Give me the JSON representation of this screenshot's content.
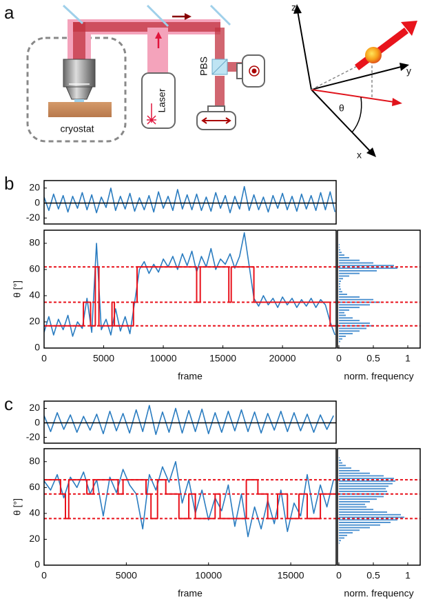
{
  "panel_labels": [
    "a",
    "b",
    "c"
  ],
  "diagram": {
    "setup_labels": {
      "cryostat": "cryostat",
      "laser": "Laser",
      "pbs": "PBS"
    },
    "axis_labels": {
      "z": "z",
      "y": "y",
      "x": "x",
      "theta": "θ"
    }
  },
  "chart_data": [
    {
      "type": "line",
      "xlim": [
        0,
        24500
      ],
      "ylim": [
        -28,
        30
      ],
      "yticks": [
        -20,
        0,
        20
      ],
      "baseline": 0,
      "baseline_color": "#000000",
      "series": [
        {
          "color": "#2a7cc0",
          "x": [
            0,
            400,
            800,
            1200,
            1600,
            2000,
            2400,
            2800,
            3200,
            3600,
            4000,
            4400,
            4800,
            5200,
            5600,
            6000,
            6400,
            6800,
            7200,
            7600,
            8000,
            8400,
            8800,
            9200,
            9600,
            10000,
            10400,
            10800,
            11200,
            11600,
            12000,
            12400,
            12800,
            13200,
            13600,
            14000,
            14400,
            14800,
            15200,
            15600,
            16000,
            16400,
            16800,
            17200,
            17600,
            18000,
            18400,
            18800,
            19200,
            19600,
            20000,
            20400,
            20800,
            21200,
            21600,
            22000,
            22400,
            22800,
            23200,
            23600,
            24000,
            24400
          ],
          "values": [
            8,
            -10,
            12,
            -8,
            10,
            -12,
            9,
            -7,
            14,
            -9,
            11,
            -13,
            8,
            -6,
            20,
            -10,
            9,
            -8,
            13,
            -11,
            7,
            -9,
            10,
            -12,
            15,
            -7,
            9,
            -10,
            18,
            -8,
            11,
            -9,
            12,
            -10,
            8,
            -11,
            14,
            -7,
            10,
            -13,
            9,
            -8,
            22,
            -10,
            11,
            -9,
            8,
            -12,
            10,
            -7,
            13,
            -9,
            9,
            -11,
            12,
            -8,
            10,
            -10,
            14,
            -9,
            15,
            -12
          ]
        }
      ]
    },
    {
      "type": "line",
      "xlim": [
        0,
        24500
      ],
      "ylim": [
        0,
        90
      ],
      "xticks": [
        0,
        5000,
        10000,
        15000,
        20000
      ],
      "yticks": [
        0,
        20,
        40,
        60,
        80
      ],
      "x_label": "frame",
      "y_label": "θ [°]",
      "levels": [
        17,
        35,
        62
      ],
      "level_color": "#e8101a",
      "series": [
        {
          "color": "#2a7cc0",
          "x": [
            0,
            400,
            800,
            1200,
            1600,
            2000,
            2400,
            2800,
            3200,
            3600,
            4000,
            4400,
            4800,
            5200,
            5600,
            6000,
            6400,
            6800,
            7200,
            7600,
            8000,
            8400,
            8800,
            9200,
            9600,
            10000,
            10400,
            10800,
            11200,
            11600,
            12000,
            12400,
            12800,
            13200,
            13600,
            14000,
            14400,
            14800,
            15200,
            15600,
            16000,
            16400,
            16800,
            17200,
            17600,
            18000,
            18400,
            18800,
            19200,
            19600,
            20000,
            20400,
            20800,
            21200,
            21600,
            22000,
            22400,
            22800,
            23200,
            23600,
            24000,
            24400
          ],
          "values": [
            12,
            24,
            10,
            22,
            14,
            25,
            9,
            20,
            15,
            38,
            12,
            80,
            14,
            22,
            10,
            30,
            13,
            24,
            11,
            35,
            60,
            66,
            57,
            64,
            58,
            68,
            62,
            70,
            60,
            72,
            63,
            74,
            58,
            70,
            62,
            76,
            60,
            68,
            64,
            72,
            61,
            70,
            88,
            63,
            38,
            32,
            40,
            33,
            38,
            31,
            39,
            33,
            38,
            31,
            37,
            32,
            38,
            31,
            37,
            33,
            20,
            10
          ]
        },
        {
          "color": "#e8101a",
          "x": [
            0,
            3300,
            3300,
            3900,
            3900,
            4300,
            4300,
            4600,
            4600,
            5700,
            5700,
            5900,
            5900,
            7500,
            7500,
            7800,
            7800,
            12800,
            12800,
            13100,
            13100,
            15500,
            15500,
            15700,
            15700,
            17600,
            17600,
            24000,
            24000,
            24400
          ],
          "values": [
            17,
            17,
            35,
            35,
            17,
            17,
            62,
            62,
            17,
            17,
            35,
            35,
            17,
            17,
            35,
            35,
            62,
            62,
            35,
            35,
            62,
            62,
            35,
            35,
            62,
            62,
            35,
            35,
            17,
            17
          ]
        }
      ]
    },
    {
      "type": "histogram",
      "orientation": "horizontal",
      "xlim": [
        -0.02,
        1.18
      ],
      "ylim": [
        0,
        90
      ],
      "xticks": [
        0,
        0.5,
        1
      ],
      "x_label": "norm. frequency",
      "color": "#4a90d0",
      "levels": [
        17,
        35,
        62
      ],
      "level_color": "#e8101a",
      "bins": [
        0,
        2,
        4,
        6,
        8,
        10,
        12,
        14,
        16,
        18,
        20,
        22,
        24,
        26,
        28,
        30,
        32,
        34,
        36,
        38,
        40,
        42,
        44,
        46,
        48,
        50,
        52,
        54,
        56,
        58,
        60,
        62,
        64,
        66,
        68,
        70,
        72,
        74,
        76,
        78,
        80,
        82,
        84,
        86,
        88,
        90
      ],
      "values": [
        0,
        0,
        0.02,
        0.05,
        0.1,
        0.2,
        0.3,
        0.4,
        0.5,
        0.45,
        0.3,
        0.2,
        0.1,
        0.08,
        0.15,
        0.3,
        0.45,
        0.6,
        0.5,
        0.3,
        0.12,
        0.05,
        0.03,
        0.02,
        0.02,
        0.03,
        0.06,
        0.15,
        0.3,
        0.55,
        0.85,
        0.8,
        0.5,
        0.3,
        0.15,
        0.08,
        0.04,
        0.02,
        0.01,
        0.01,
        0,
        0,
        0,
        0,
        0
      ]
    },
    {
      "type": "line",
      "xlim": [
        0,
        17760
      ],
      "ylim": [
        -28,
        30
      ],
      "yticks": [
        -20,
        0,
        20
      ],
      "baseline": 0,
      "baseline_color": "#000000",
      "series": [
        {
          "color": "#2a7cc0",
          "x": [
            0,
            400,
            800,
            1200,
            1600,
            2000,
            2400,
            2800,
            3200,
            3600,
            4000,
            4400,
            4800,
            5200,
            5600,
            6000,
            6400,
            6800,
            7200,
            7600,
            8000,
            8400,
            8800,
            9200,
            9600,
            10000,
            10400,
            10800,
            11200,
            11600,
            12000,
            12400,
            12800,
            13200,
            13600,
            14000,
            14400,
            14800,
            15200,
            15600,
            16000,
            16400,
            16800,
            17200,
            17600
          ],
          "values": [
            10,
            -12,
            14,
            -9,
            11,
            -13,
            9,
            -10,
            12,
            -15,
            16,
            -11,
            13,
            -14,
            18,
            -12,
            24,
            -16,
            15,
            -13,
            20,
            -14,
            17,
            -12,
            19,
            -15,
            14,
            -13,
            16,
            -11,
            18,
            -12,
            15,
            -14,
            13,
            -10,
            16,
            -12,
            14,
            -11,
            12,
            -13,
            11,
            -9,
            10
          ]
        }
      ]
    },
    {
      "type": "line",
      "xlim": [
        0,
        17760
      ],
      "ylim": [
        0,
        90
      ],
      "xticks": [
        0,
        5000,
        10000,
        15000
      ],
      "yticks": [
        0,
        20,
        40,
        60,
        80
      ],
      "x_label": "frame",
      "y_label": "θ [°]",
      "levels": [
        36,
        55,
        66
      ],
      "level_color": "#e8101a",
      "series": [
        {
          "color": "#2a7cc0",
          "x": [
            0,
            400,
            800,
            1200,
            1600,
            2000,
            2400,
            2800,
            3200,
            3600,
            4000,
            4400,
            4800,
            5200,
            5600,
            6000,
            6400,
            6800,
            7200,
            7600,
            8000,
            8400,
            8800,
            9200,
            9600,
            10000,
            10400,
            10800,
            11200,
            11600,
            12000,
            12400,
            12800,
            13200,
            13600,
            14000,
            14400,
            14800,
            15200,
            15600,
            16000,
            16400,
            16800,
            17200,
            17600
          ],
          "values": [
            65,
            58,
            70,
            52,
            68,
            60,
            72,
            55,
            66,
            38,
            68,
            56,
            74,
            62,
            55,
            28,
            70,
            58,
            76,
            64,
            80,
            48,
            66,
            40,
            58,
            35,
            52,
            42,
            62,
            30,
            55,
            22,
            45,
            28,
            50,
            32,
            58,
            26,
            48,
            38,
            70,
            40,
            62,
            45,
            66
          ]
        },
        {
          "color": "#e8101a",
          "x": [
            0,
            1000,
            1000,
            1300,
            1300,
            1500,
            1500,
            2600,
            2600,
            3000,
            3000,
            4500,
            4500,
            4800,
            4800,
            6200,
            6200,
            6500,
            6500,
            6900,
            6900,
            7400,
            7400,
            8200,
            8200,
            8800,
            8800,
            9200,
            9200,
            10400,
            10400,
            10700,
            10700,
            12300,
            12300,
            13000,
            13000,
            13600,
            13600,
            14200,
            14200,
            14800,
            14800,
            15500,
            15500,
            16000,
            16000,
            16800,
            16800,
            17700
          ],
          "values": [
            66,
            66,
            55,
            55,
            36,
            36,
            66,
            66,
            55,
            55,
            66,
            66,
            55,
            55,
            66,
            66,
            55,
            55,
            36,
            36,
            66,
            66,
            55,
            55,
            36,
            36,
            55,
            55,
            36,
            36,
            55,
            55,
            36,
            36,
            66,
            66,
            55,
            55,
            36,
            36,
            55,
            55,
            36,
            36,
            55,
            55,
            36,
            36,
            55,
            55
          ]
        }
      ]
    },
    {
      "type": "histogram",
      "orientation": "horizontal",
      "xlim": [
        -0.02,
        1.18
      ],
      "ylim": [
        0,
        90
      ],
      "xticks": [
        0,
        0.5,
        1
      ],
      "x_label": "norm. frequency",
      "color": "#4a90d0",
      "levels": [
        36,
        55,
        66
      ],
      "level_color": "#e8101a",
      "bins": [
        0,
        2,
        4,
        6,
        8,
        10,
        12,
        14,
        16,
        18,
        20,
        22,
        24,
        26,
        28,
        30,
        32,
        34,
        36,
        38,
        40,
        42,
        44,
        46,
        48,
        50,
        52,
        54,
        56,
        58,
        60,
        62,
        64,
        66,
        68,
        70,
        72,
        74,
        76,
        78,
        80,
        82,
        84,
        86,
        88,
        90
      ],
      "values": [
        0,
        0,
        0,
        0,
        0,
        0,
        0,
        0,
        0.01,
        0.03,
        0.08,
        0.12,
        0.2,
        0.3,
        0.45,
        0.6,
        0.75,
        0.85,
        0.95,
        0.9,
        0.7,
        0.5,
        0.4,
        0.38,
        0.45,
        0.55,
        0.65,
        0.72,
        0.7,
        0.68,
        0.72,
        0.78,
        0.82,
        0.8,
        0.65,
        0.45,
        0.3,
        0.18,
        0.1,
        0.05,
        0.03,
        0.01,
        0,
        0,
        0
      ]
    }
  ]
}
